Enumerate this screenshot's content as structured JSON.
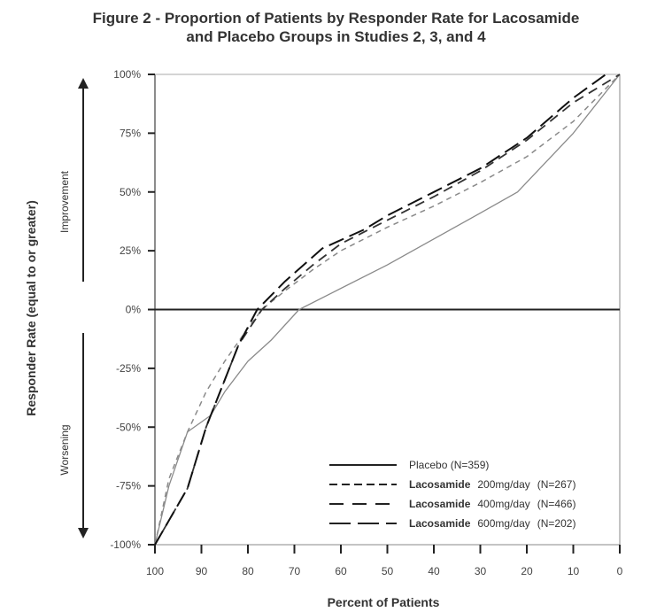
{
  "chart_data": {
    "type": "line",
    "title": "Figure 2 - Proportion of Patients by Responder Rate for Lacosamide and Placebo Groups in Studies 2, 3, and 4",
    "title_lines": [
      "Figure 2 - Proportion of Patients by Responder Rate for Lacosamide",
      "and Placebo Groups in Studies 2, 3, and 4"
    ],
    "xlabel": "Percent of Patients",
    "ylabel": "Responder Rate (equal to or greater)",
    "xlim": [
      100,
      0
    ],
    "ylim": [
      -100,
      100
    ],
    "x_reversed": true,
    "x_ticks": [
      100,
      90,
      80,
      70,
      60,
      50,
      40,
      30,
      20,
      10,
      0
    ],
    "x_tick_labels": [
      "100",
      "90",
      "80",
      "70",
      "60",
      "50",
      "40",
      "30",
      "20",
      "10",
      "0"
    ],
    "y_ticks": [
      100,
      75,
      50,
      25,
      0,
      -25,
      -50,
      -75,
      -100
    ],
    "y_tick_labels": [
      "100%",
      "75%",
      "50%",
      "25%",
      "0%",
      "-25%",
      "-50%",
      "-75%",
      "-100%"
    ],
    "grid": false,
    "reference_line_y": 0,
    "annotations": {
      "improvement": "Improvement",
      "worsening": "Worsening"
    },
    "legend_position": "bottom-right",
    "series": [
      {
        "name": "Placebo (N=359)",
        "label_bold": "",
        "label_rest": "Placebo (N=359)",
        "style": "solid",
        "color": "#8a8a8a",
        "x": [
          100,
          97,
          93,
          88,
          85,
          80,
          75,
          69,
          62,
          50,
          40,
          30,
          22,
          10,
          0
        ],
        "y": [
          -100,
          -75,
          -52,
          -45,
          -35,
          -22,
          -13,
          0,
          7,
          19,
          30,
          41,
          50,
          75,
          100
        ]
      },
      {
        "name": "Lacosamide 200mg/day (N=267)",
        "label_bold": "Lacosamide",
        "label_rest": "200mg/day",
        "label_n": "(N=267)",
        "style": "dash-short",
        "color": "#8a8a8a",
        "x": [
          100,
          97,
          93,
          89,
          85,
          80,
          77,
          72,
          66,
          60,
          50,
          40,
          30,
          20,
          10,
          0
        ],
        "y": [
          -100,
          -72,
          -52,
          -35,
          -22,
          -8,
          0,
          8,
          17,
          25,
          35,
          44,
          54,
          65,
          80,
          100
        ]
      },
      {
        "name": "Lacosamide 400mg/day (N=466)",
        "label_bold": "Lacosamide",
        "label_rest": "400mg/day",
        "label_n": "(N=466)",
        "style": "dash-medium",
        "color": "#333333",
        "x": [
          100,
          93,
          89,
          85,
          82,
          77,
          72,
          66,
          60,
          50,
          40,
          30,
          20,
          10,
          0
        ],
        "y": [
          -100,
          -76,
          -50,
          -30,
          -15,
          0,
          9,
          19,
          28,
          38,
          48,
          59,
          72,
          88,
          100
        ]
      },
      {
        "name": "Lacosamide 600mg/day (N=202)",
        "label_bold": "Lacosamide",
        "label_rest": "600mg/day",
        "label_n": "(N=202)",
        "style": "dash-long",
        "color": "#111111",
        "x": [
          100,
          93,
          89,
          85,
          82,
          78,
          72,
          64,
          55,
          50,
          40,
          30,
          20,
          10,
          3
        ],
        "y": [
          -100,
          -76,
          -50,
          -30,
          -15,
          0,
          12,
          26,
          34,
          40,
          50,
          60,
          73,
          90,
          100
        ]
      }
    ]
  }
}
